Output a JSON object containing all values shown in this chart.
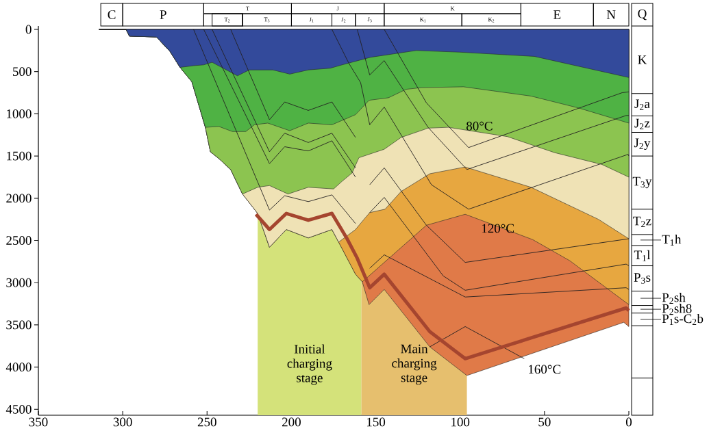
{
  "chart_data": {
    "type": "area",
    "xlim": [
      350,
      0
    ],
    "ylim": [
      4570,
      -40
    ],
    "xticks": [
      350,
      300,
      250,
      200,
      150,
      100,
      50,
      0
    ],
    "yticks": [
      0,
      500,
      1000,
      1500,
      2000,
      2500,
      3000,
      3500,
      4000,
      4500
    ],
    "bands": [
      {
        "axis": "x",
        "from": 220,
        "to": 158.5,
        "label": "Initial charging stage",
        "color": "#d4e27a"
      },
      {
        "axis": "x",
        "from": 158.5,
        "to": 96,
        "label": "Main charging stage",
        "color": "#e6bf6e"
      }
    ],
    "annotations": [
      "80°C",
      "120°C",
      "160°C",
      "Q",
      "C",
      "P",
      "T",
      "T$_{2}$",
      "T$_{3}$",
      "J",
      "J$_{1}$",
      "J$_{2}$",
      "J$_{3}$",
      "K",
      "K$_{1}$",
      "K$_{2}$",
      "E",
      "N",
      "K",
      "J$_{2}$a",
      "J$_{2}$z",
      "J$_{2}$y",
      "T$_{3}$y",
      "T$_{2}$z",
      "T$_{1}$h",
      "T$_{1}$l",
      "P$_{3}$s",
      "P$_{2}$sh",
      "P$_{2}$sh8",
      "P$_{1}$s-C$_{2}$b"
    ],
    "series": [
      {
        "color": "#334a9b",
        "x": [
          314,
          298,
          296,
          280,
          272,
          266,
          258,
          252,
          247,
          232,
          225,
          211,
          201,
          190,
          177,
          170,
          153,
          126,
          100,
          56,
          0
        ],
        "values": [
          0,
          0,
          80,
          90,
          260,
          450,
          430,
          420,
          390,
          550,
          480,
          480,
          530,
          480,
          460,
          420,
          330,
          250,
          270,
          320,
          570
        ]
      },
      {
        "color": "#4fb244",
        "x": [
          314,
          298,
          296,
          280,
          272,
          266,
          259,
          251,
          243,
          235,
          227,
          222,
          214,
          201,
          190,
          176,
          162,
          154,
          142.5,
          132,
          123,
          98,
          58,
          30,
          0
        ],
        "values": [
          0,
          0,
          80,
          90,
          260,
          450,
          620,
          1160,
          1150,
          1210,
          1210,
          1130,
          1110,
          1200,
          1110,
          1130,
          1010,
          840,
          810,
          710,
          690,
          680,
          790,
          930,
          1110
        ]
      },
      {
        "color": "#8cc450",
        "x": [
          314,
          298,
          296,
          280,
          272,
          266,
          259,
          251,
          248,
          243,
          236,
          229,
          220,
          213,
          202,
          190,
          175,
          170,
          164,
          160,
          145,
          135,
          119,
          107,
          72,
          44,
          16,
          0
        ],
        "values": [
          0,
          0,
          80,
          90,
          260,
          450,
          620,
          1160,
          1450,
          1530,
          1660,
          1950,
          1870,
          1850,
          1950,
          1870,
          1890,
          1800,
          1700,
          1520,
          1420,
          1280,
          1170,
          1160,
          1270,
          1460,
          1600,
          1750
        ]
      },
      {
        "color": "#efe2b5",
        "x": [
          314,
          298,
          296,
          280,
          272,
          266,
          259,
          251,
          248,
          243,
          236,
          229,
          220,
          213,
          203,
          190,
          176,
          172,
          162,
          157,
          153.6,
          144.5,
          135,
          118,
          97,
          58,
          18,
          0
        ],
        "values": [
          0,
          0,
          80,
          90,
          260,
          450,
          620,
          1160,
          1450,
          1530,
          1660,
          1950,
          2180,
          2580,
          2370,
          2470,
          2370,
          2520,
          2370,
          2250,
          2170,
          2130,
          1920,
          1710,
          1630,
          1870,
          2250,
          2480
        ]
      },
      {
        "color": "#e7a740",
        "x": [
          314,
          298,
          296,
          280,
          272,
          266,
          259,
          251,
          248,
          243,
          236,
          229,
          220,
          213,
          203,
          190,
          176,
          172,
          162,
          158,
          120,
          97,
          57,
          35,
          0
        ],
        "values": [
          0,
          0,
          80,
          90,
          260,
          450,
          620,
          1160,
          1450,
          1530,
          1660,
          1950,
          2180,
          2580,
          2370,
          2470,
          2370,
          2520,
          2900,
          2990,
          2320,
          2190,
          2490,
          2740,
          3260
        ]
      },
      {
        "color": "#e07a48",
        "x": [
          314,
          298,
          296,
          280,
          272,
          266,
          259,
          251,
          248,
          243,
          236,
          229,
          220,
          213,
          203,
          190,
          176,
          172,
          162,
          158,
          154,
          145,
          118,
          96,
          3,
          0
        ],
        "values": [
          0,
          0,
          80,
          90,
          260,
          450,
          620,
          1160,
          1450,
          1530,
          1660,
          1950,
          2180,
          2580,
          2370,
          2470,
          2370,
          2520,
          2900,
          2990,
          3260,
          3080,
          3760,
          4100,
          3470,
          3520
        ]
      },
      {
        "type": "line",
        "color": "#231f20",
        "x": [
          145,
          120,
          95,
          4,
          0
        ],
        "values": [
          0,
          870,
          1400,
          750,
          740
        ]
      },
      {
        "type": "line",
        "color": "#231f20",
        "x": [
          161,
          153.6,
          145,
          119,
          96,
          1.6,
          0
        ],
        "values": [
          0,
          540,
          370,
          1160,
          1660,
          1020,
          1020
        ]
      },
      {
        "type": "line",
        "color": "#231f20",
        "x": [
          176,
          166,
          159,
          153.6,
          145,
          117,
          95,
          0.4,
          0
        ],
        "values": [
          0,
          400,
          630,
          1130,
          920,
          1840,
          2130,
          1480,
          1500
        ]
      },
      {
        "type": "line",
        "color": "#231f20",
        "x": [
          153.6,
          145,
          120,
          97,
          0
        ],
        "values": [
          1840,
          1640,
          2320,
          2760,
          2480
        ]
      },
      {
        "type": "line",
        "color": "#231f20",
        "x": [
          153.6,
          145,
          110,
          97,
          1.6,
          0
        ],
        "values": [
          2170,
          1990,
          2920,
          3090,
          2780,
          2800
        ]
      },
      {
        "type": "line",
        "color": "#231f20",
        "x": [
          153.6,
          145,
          97,
          1.6,
          0
        ],
        "values": [
          2830,
          2670,
          3170,
          3060,
          3080
        ]
      },
      {
        "type": "line",
        "color": "#231f20",
        "x": [
          118,
          97,
          62
        ],
        "values": [
          3760,
          3520,
          3900
        ]
      },
      {
        "type": "line",
        "color": "#231f20",
        "x": [
          236,
          213,
          204,
          190,
          176,
          162
        ],
        "values": [
          0,
          1070,
          860,
          960,
          860,
          1280
        ]
      },
      {
        "type": "line",
        "color": "#231f20",
        "x": [
          247,
          213,
          204,
          190,
          176,
          162
        ],
        "values": [
          0,
          1450,
          1230,
          1340,
          1230,
          1640
        ]
      },
      {
        "type": "line",
        "color": "#231f20",
        "x": [
          252,
          213,
          204,
          190,
          176,
          162
        ],
        "values": [
          0,
          1590,
          1390,
          1440,
          1320,
          1750
        ]
      },
      {
        "type": "line",
        "color": "#231f20",
        "x": [
          258,
          213,
          204,
          190,
          176,
          162
        ],
        "values": [
          0,
          2140,
          1970,
          2040,
          1960,
          2300
        ]
      },
      {
        "type": "line",
        "color": "#a5452f",
        "x": [
          221,
          213,
          203,
          190,
          176,
          167,
          161,
          153.6,
          145,
          118,
          97,
          1.6,
          0
        ],
        "values": [
          2190,
          2370,
          2180,
          2260,
          2180,
          2480,
          2710,
          3060,
          2900,
          3580,
          3900,
          3300,
          3330
        ]
      }
    ]
  }
}
